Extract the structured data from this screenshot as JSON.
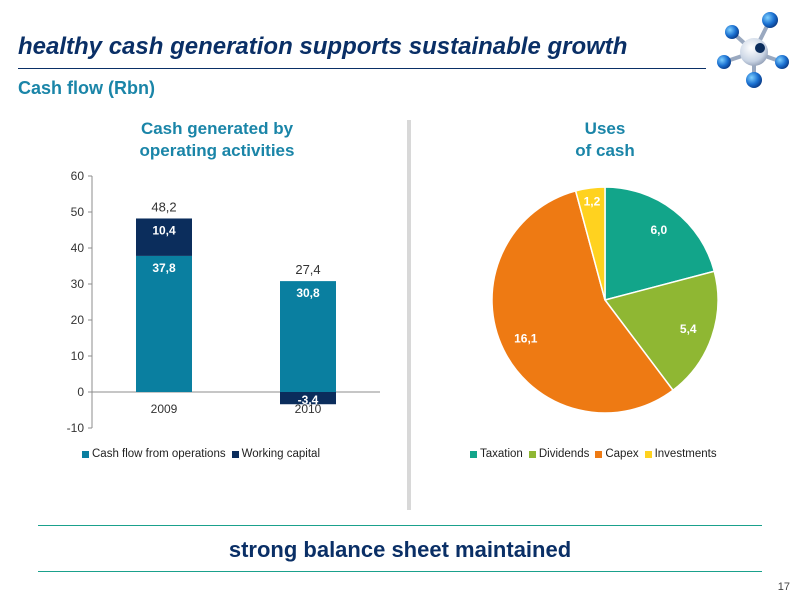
{
  "header": {
    "title": "healthy cash generation supports sustainable growth",
    "subtitle": "Cash flow (Rbn)"
  },
  "footer": {
    "text": "strong balance sheet maintained",
    "page_number": "17"
  },
  "colors": {
    "title": "#0a2f66",
    "accent": "#1a85a8",
    "rule": "#1aa18c"
  },
  "chart_data": [
    {
      "type": "bar",
      "stacked": true,
      "title": "Cash generated by operating activities",
      "title_lines": [
        "Cash generated by",
        "operating activities"
      ],
      "categories": [
        "2009",
        "2010"
      ],
      "series": [
        {
          "name": "Cash flow from operations",
          "values": [
            37.8,
            30.8
          ],
          "labels": [
            "37,8",
            "30,8"
          ],
          "color": "#0a7fa0"
        },
        {
          "name": "Working capital",
          "values": [
            10.4,
            -3.4
          ],
          "labels": [
            "10,4",
            "-3,4"
          ],
          "color": "#0b2d5c"
        }
      ],
      "totals": [
        48.2,
        27.4
      ],
      "total_labels": [
        "48,2",
        "27,4"
      ],
      "ylim": [
        -10,
        60
      ],
      "yticks": [
        -10,
        0,
        10,
        20,
        30,
        40,
        50,
        60
      ],
      "legend_position": "bottom",
      "grid": false
    },
    {
      "type": "pie",
      "title": "Uses of cash",
      "title_lines": [
        "Uses",
        "of cash"
      ],
      "slices": [
        {
          "name": "Taxation",
          "value": 6.0,
          "label": "6,0",
          "color": "#12a58a"
        },
        {
          "name": "Dividends",
          "value": 5.4,
          "label": "5,4",
          "color": "#8fb733"
        },
        {
          "name": "Capex",
          "value": 16.1,
          "label": "16,1",
          "color": "#ee7a13"
        },
        {
          "name": "Investments",
          "value": 1.2,
          "label": "1,2",
          "color": "#ffd21f"
        }
      ],
      "legend_position": "bottom"
    }
  ]
}
